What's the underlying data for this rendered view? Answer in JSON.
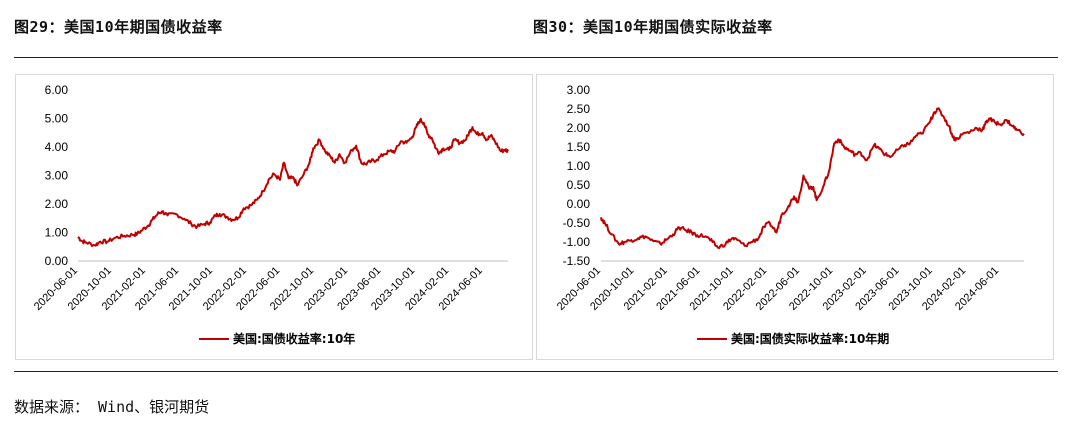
{
  "figures": [
    {
      "title": "图29：美国10年期国债收益率"
    },
    {
      "title": "图30：美国10年期国债实际收益率"
    }
  ],
  "source": "数据来源： Wind、银河期货",
  "line_color": "#c00000",
  "chart_data": [
    {
      "type": "line",
      "ylim": [
        0,
        6
      ],
      "yticks": [
        "0.00",
        "1.00",
        "2.00",
        "3.00",
        "4.00",
        "5.00",
        "6.00"
      ],
      "xlim": [
        "2020-06-01",
        "2024-08-31"
      ],
      "xticks": [
        "2020-06-01",
        "2020-10-01",
        "2021-02-01",
        "2021-06-01",
        "2021-10-01",
        "2022-02-01",
        "2022-06-01",
        "2022-10-01",
        "2023-02-01",
        "2023-06-01",
        "2023-10-01",
        "2024-02-01",
        "2024-06-01"
      ],
      "legend": "bottom",
      "series": [
        {
          "name": "美国:国债收益率:10年",
          "x": [
            "2020-06-01",
            "2020-06-15",
            "2020-07-01",
            "2020-08-01",
            "2020-08-20",
            "2020-09-15",
            "2020-10-15",
            "2020-11-15",
            "2020-12-15",
            "2021-01-01",
            "2021-01-20",
            "2021-02-10",
            "2021-02-25",
            "2021-03-15",
            "2021-03-31",
            "2021-04-20",
            "2021-05-20",
            "2021-06-20",
            "2021-07-15",
            "2021-08-05",
            "2021-08-31",
            "2021-09-20",
            "2021-10-10",
            "2021-10-25",
            "2021-11-20",
            "2021-12-10",
            "2021-12-31",
            "2022-01-20",
            "2022-02-15",
            "2022-03-10",
            "2022-03-31",
            "2022-04-20",
            "2022-05-10",
            "2022-05-31",
            "2022-06-14",
            "2022-07-01",
            "2022-07-20",
            "2022-08-01",
            "2022-08-25",
            "2022-09-15",
            "2022-09-28",
            "2022-10-21",
            "2022-11-10",
            "2022-11-30",
            "2022-12-15",
            "2023-01-01",
            "2023-01-20",
            "2023-02-15",
            "2023-03-02",
            "2023-03-20",
            "2023-04-05",
            "2023-04-25",
            "2023-05-15",
            "2023-06-10",
            "2023-07-01",
            "2023-07-20",
            "2023-08-10",
            "2023-08-31",
            "2023-09-20",
            "2023-10-05",
            "2023-10-19",
            "2023-11-01",
            "2023-11-15",
            "2023-12-01",
            "2023-12-15",
            "2023-12-27",
            "2024-01-10",
            "2024-01-31",
            "2024-02-20",
            "2024-03-10",
            "2024-03-31",
            "2024-04-15",
            "2024-04-25",
            "2024-05-10",
            "2024-05-31",
            "2024-06-15",
            "2024-06-30",
            "2024-07-15",
            "2024-08-05",
            "2024-08-20",
            "2024-08-31"
          ],
          "values": [
            0.85,
            0.7,
            0.65,
            0.55,
            0.68,
            0.68,
            0.82,
            0.88,
            0.92,
            0.95,
            1.1,
            1.25,
            1.45,
            1.65,
            1.74,
            1.6,
            1.65,
            1.48,
            1.3,
            1.2,
            1.3,
            1.35,
            1.6,
            1.65,
            1.55,
            1.45,
            1.52,
            1.85,
            1.95,
            2.15,
            2.45,
            2.85,
            3.05,
            2.85,
            3.45,
            2.9,
            2.9,
            2.65,
            3.05,
            3.45,
            3.95,
            4.25,
            3.85,
            3.65,
            3.45,
            3.75,
            3.45,
            3.9,
            4.05,
            3.45,
            3.4,
            3.5,
            3.55,
            3.75,
            3.85,
            3.85,
            4.2,
            4.15,
            4.35,
            4.7,
            4.95,
            4.85,
            4.45,
            4.3,
            3.95,
            3.8,
            3.95,
            3.9,
            4.25,
            4.15,
            4.25,
            4.55,
            4.7,
            4.45,
            4.5,
            4.25,
            4.4,
            4.2,
            3.85,
            3.9,
            3.85
          ]
        }
      ]
    },
    {
      "type": "line",
      "ylim": [
        -1.5,
        3
      ],
      "yticks": [
        "-1.50",
        "-1.00",
        "-0.50",
        "0.00",
        "0.50",
        "1.00",
        "1.50",
        "2.00",
        "2.50",
        "3.00"
      ],
      "xlim": [
        "2020-06-01",
        "2024-08-31"
      ],
      "xticks": [
        "2020-06-01",
        "2020-10-01",
        "2021-02-01",
        "2021-06-01",
        "2021-10-01",
        "2022-02-01",
        "2022-06-01",
        "2022-10-01",
        "2023-02-01",
        "2023-06-01",
        "2023-10-01",
        "2024-02-01",
        "2024-06-01"
      ],
      "legend": "bottom",
      "series": [
        {
          "name": "美国:国债实际收益率:10年期",
          "x": [
            "2020-06-01",
            "2020-06-15",
            "2020-07-10",
            "2020-08-05",
            "2020-08-25",
            "2020-09-20",
            "2020-10-15",
            "2020-11-10",
            "2020-12-10",
            "2021-01-05",
            "2021-01-25",
            "2021-02-20",
            "2021-03-15",
            "2021-04-05",
            "2021-04-30",
            "2021-05-20",
            "2021-06-20",
            "2021-07-15",
            "2021-08-04",
            "2021-09-01",
            "2021-09-25",
            "2021-10-15",
            "2021-11-10",
            "2021-12-05",
            "2021-12-31",
            "2022-01-20",
            "2022-02-10",
            "2022-03-07",
            "2022-03-25",
            "2022-04-20",
            "2022-05-10",
            "2022-05-25",
            "2022-06-14",
            "2022-07-05",
            "2022-07-20",
            "2022-08-01",
            "2022-08-25",
            "2022-09-15",
            "2022-10-05",
            "2022-10-21",
            "2022-11-10",
            "2022-12-01",
            "2022-12-20",
            "2023-01-10",
            "2023-02-01",
            "2023-02-28",
            "2023-03-20",
            "2023-04-10",
            "2023-05-01",
            "2023-05-30",
            "2023-06-20",
            "2023-07-10",
            "2023-08-01",
            "2023-08-21",
            "2023-09-20",
            "2023-10-05",
            "2023-10-20",
            "2023-11-10",
            "2023-11-30",
            "2023-12-15",
            "2023-12-27",
            "2024-01-20",
            "2024-02-15",
            "2024-03-10",
            "2024-03-31",
            "2024-04-15",
            "2024-04-25",
            "2024-05-15",
            "2024-06-05",
            "2024-06-30",
            "2024-07-20",
            "2024-08-05",
            "2024-08-31"
          ],
          "values": [
            -0.35,
            -0.5,
            -0.8,
            -1.05,
            -1.0,
            -0.95,
            -0.9,
            -0.85,
            -0.98,
            -1.05,
            -0.95,
            -0.8,
            -0.62,
            -0.68,
            -0.75,
            -0.82,
            -0.85,
            -1.0,
            -1.15,
            -1.05,
            -0.9,
            -0.95,
            -1.1,
            -1.0,
            -0.9,
            -0.6,
            -0.5,
            -0.75,
            -0.3,
            -0.05,
            0.2,
            0.05,
            0.75,
            0.4,
            0.45,
            0.1,
            0.45,
            0.85,
            1.6,
            1.7,
            1.5,
            1.4,
            1.3,
            1.35,
            1.15,
            1.55,
            1.45,
            1.3,
            1.25,
            1.45,
            1.55,
            1.6,
            1.8,
            1.85,
            2.15,
            2.4,
            2.5,
            2.3,
            2.05,
            1.75,
            1.7,
            1.85,
            1.9,
            2.0,
            1.95,
            2.15,
            2.25,
            2.15,
            2.1,
            2.2,
            2.05,
            1.95,
            1.85
          ]
        }
      ]
    }
  ]
}
